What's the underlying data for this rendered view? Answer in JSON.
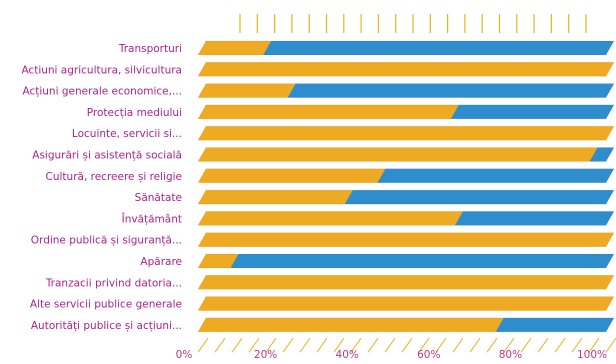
{
  "chart_data": {
    "type": "bar",
    "orientation": "horizontal",
    "stacked_percent": true,
    "categories": [
      "Transporturi",
      "Actiuni agricultura, silvicultura",
      "Acțiuni generale economice,...",
      "Protecția mediului",
      "Locuinte, servicii si...",
      "Asigurări și asistență socială",
      "Cultură, recreere și religie",
      "Sănătate",
      "Învățământ",
      "Ordine publică și siguranță...",
      "Apărare",
      "Tranzacii privind datoria...",
      "Alte servicii publice generale",
      "Autorități publice și acțiuni..."
    ],
    "series": [
      {
        "values": [
          16,
          100,
          22,
          62,
          100,
          96,
          44,
          36,
          63,
          100,
          8,
          100,
          100,
          73
        ]
      },
      {
        "values": [
          84,
          0,
          78,
          38,
          0,
          4,
          56,
          64,
          37,
          0,
          92,
          0,
          0,
          27
        ]
      }
    ],
    "x_ticks": [
      "0%",
      "20%",
      "40%",
      "60%",
      "80%",
      "100%"
    ],
    "xlim": [
      0,
      100
    ],
    "colors": {
      "series_1": "#EEAA22",
      "series_2": "#2E8ECD",
      "label_text": "#A8238C",
      "tick_text": "#B83A8A",
      "axis_deco": "#E6B422"
    }
  }
}
